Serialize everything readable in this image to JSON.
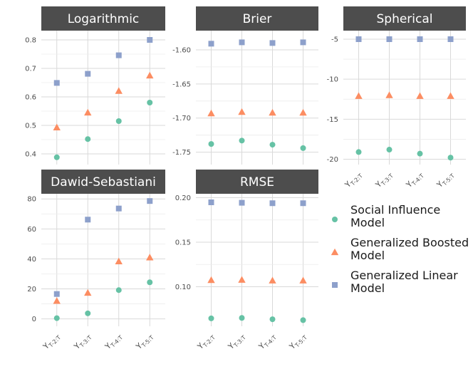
{
  "chart_data": {
    "type": "scatter",
    "categories": [
      {
        "base": "Y",
        "sub": "T-2:T"
      },
      {
        "base": "Y",
        "sub": "T-3:T"
      },
      {
        "base": "Y",
        "sub": "T-4:T"
      },
      {
        "base": "Y",
        "sub": "T-5:T"
      }
    ],
    "legend": [
      {
        "label_line1": "Social Influence",
        "label_line2": "Model",
        "color": "#66c2a5",
        "shape": "circle"
      },
      {
        "label_line1": "Generalized Boosted",
        "label_line2": "Model",
        "color": "#fc8d62",
        "shape": "triangle"
      },
      {
        "label_line1": "Generalized Linear",
        "label_line2": "Model",
        "color": "#8da0cb",
        "shape": "square"
      }
    ],
    "colors": {
      "strip_bg": "#4d4d4d",
      "grid": "#d9d9d9"
    },
    "panels": [
      {
        "title": "Logarithmic",
        "ylim": [
          0.37,
          0.825
        ],
        "yticks": [
          0.4,
          0.5,
          0.6,
          0.7,
          0.8
        ],
        "ytick_labels": [
          "0.4",
          "0.5",
          "0.6",
          "0.7",
          "0.8"
        ],
        "show_xticks": false,
        "series": [
          {
            "name": "Social Influence Model",
            "values": [
              0.388,
              0.452,
              0.515,
              0.58
            ]
          },
          {
            "name": "Generalized Boosted Model",
            "values": [
              0.493,
              0.545,
              0.621,
              0.675
            ]
          },
          {
            "name": "Generalized Linear Model",
            "values": [
              0.649,
              0.681,
              0.746,
              0.8
            ]
          }
        ]
      },
      {
        "title": "Brier",
        "ylim": [
          -1.765,
          -1.575
        ],
        "yticks": [
          -1.75,
          -1.7,
          -1.65,
          -1.6
        ],
        "ytick_labels": [
          "-1.75",
          "-1.70",
          "-1.65",
          "-1.60"
        ],
        "show_xticks": false,
        "series": [
          {
            "name": "Social Influence Model",
            "values": [
              -1.738,
              -1.733,
              -1.739,
              -1.744
            ]
          },
          {
            "name": "Generalized Boosted Model",
            "values": [
              -1.693,
              -1.691,
              -1.692,
              -1.692
            ]
          },
          {
            "name": "Generalized Linear Model",
            "values": [
              -1.591,
              -1.589,
              -1.59,
              -1.589
            ]
          }
        ]
      },
      {
        "title": "Spherical",
        "ylim": [
          -20.4,
          -4.2
        ],
        "yticks": [
          -20,
          -15,
          -10,
          -5
        ],
        "ytick_labels": [
          "-20",
          "-15",
          "-10",
          "-5"
        ],
        "show_xticks": true,
        "series": [
          {
            "name": "Social Influence Model",
            "values": [
              -19.1,
              -18.8,
              -19.3,
              -19.8
            ]
          },
          {
            "name": "Generalized Boosted Model",
            "values": [
              -12.1,
              -12.0,
              -12.1,
              -12.1
            ]
          },
          {
            "name": "Generalized Linear Model",
            "values": [
              -5.0,
              -5.0,
              -5.0,
              -5.0
            ]
          }
        ]
      },
      {
        "title": "Dawid-Sebastiani",
        "ylim": [
          -3.5,
          82
        ],
        "yticks": [
          0,
          20,
          40,
          60,
          80
        ],
        "ytick_labels": [
          "0",
          "20",
          "40",
          "60",
          "80"
        ],
        "show_xticks": true,
        "series": [
          {
            "name": "Social Influence Model",
            "values": [
              0.5,
              3.7,
              19.2,
              24.4
            ]
          },
          {
            "name": "Generalized Boosted Model",
            "values": [
              12.0,
              17.4,
              38.4,
              41.0
            ]
          },
          {
            "name": "Generalized Linear Model",
            "values": [
              16.6,
              66.2,
              73.6,
              78.6
            ]
          }
        ]
      },
      {
        "title": "RMSE",
        "ylim": [
          0.058,
          0.202
        ],
        "yticks": [
          0.1,
          0.15,
          0.2
        ],
        "ytick_labels": [
          "0.10",
          "0.15",
          "0.20"
        ],
        "show_xticks": true,
        "series": [
          {
            "name": "Social Influence Model",
            "values": [
              0.0645,
              0.065,
              0.0635,
              0.0625
            ]
          },
          {
            "name": "Generalized Boosted Model",
            "values": [
              0.1075,
              0.1078,
              0.107,
              0.107
            ]
          },
          {
            "name": "Generalized Linear Model",
            "values": [
              0.1948,
              0.1943,
              0.1938,
              0.1938
            ]
          }
        ]
      }
    ]
  }
}
